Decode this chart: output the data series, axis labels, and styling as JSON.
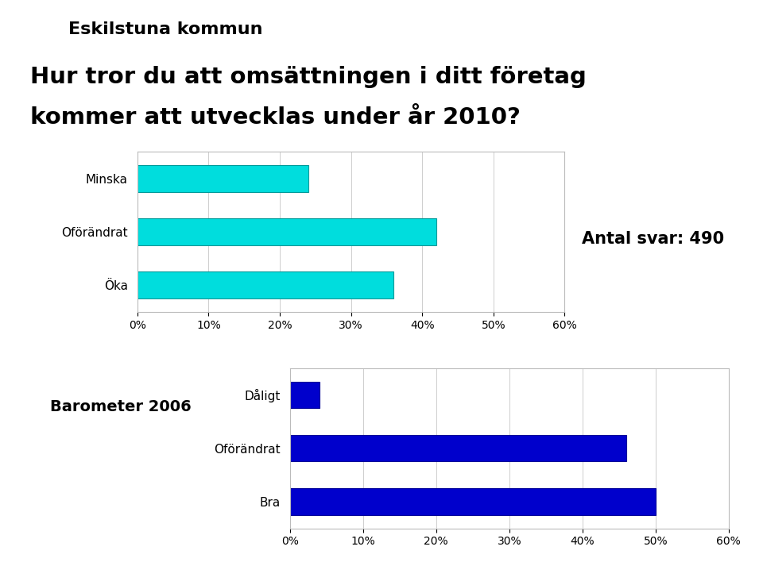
{
  "title_line1": "Hur tror du att omsättningen i ditt företag",
  "title_line2": "kommer att utvecklas under år 2010?",
  "annotation": "Antal svar: 490",
  "chart1": {
    "categories": [
      "Öka",
      "Oförändrat",
      "Minska"
    ],
    "values": [
      36,
      42,
      24
    ],
    "bar_color": "#00DDDD",
    "bar_edgecolor": "#009999",
    "xlim": [
      0,
      60
    ],
    "xticks": [
      0,
      10,
      20,
      30,
      40,
      50,
      60
    ],
    "xticklabels": [
      "0%",
      "10%",
      "20%",
      "30%",
      "40%",
      "50%",
      "60%"
    ]
  },
  "chart2_label": "Barometer 2006",
  "chart2": {
    "categories": [
      "Bra",
      "Oförändrat",
      "Dåligt"
    ],
    "values": [
      50,
      46,
      4
    ],
    "bar_color": "#0000CC",
    "bar_edgecolor": "#000099",
    "xlim": [
      0,
      60
    ],
    "xticks": [
      0,
      10,
      20,
      30,
      40,
      50,
      60
    ],
    "xticklabels": [
      "0%",
      "10%",
      "20%",
      "30%",
      "40%",
      "50%",
      "60%"
    ]
  },
  "background_color": "#FFFFFF",
  "header_bg": "#CCCCCC",
  "grid_color": "#BBBBBB",
  "title_fontsize": 21,
  "label_fontsize": 11,
  "tick_fontsize": 10,
  "annotation_fontsize": 15
}
